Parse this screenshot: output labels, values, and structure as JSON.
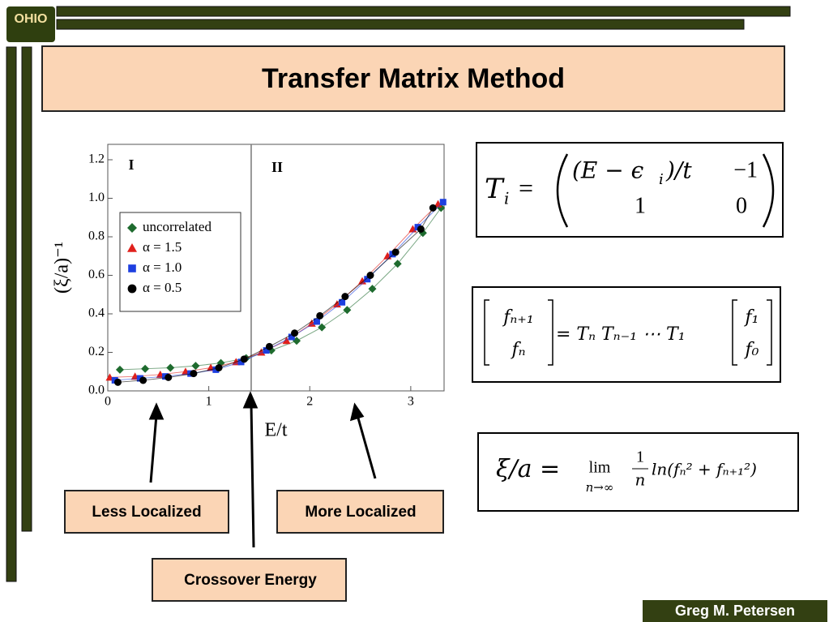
{
  "slide": {
    "logo": "OHIO",
    "title": "Transfer Matrix Method",
    "eq1": {
      "lhs": "T",
      "lhs_sub": "i",
      "eq": "=",
      "m11": "(E − ϵ",
      "m11_sub": "i",
      "m11_end": ")/t",
      "m12": "−1",
      "m21": "1",
      "m22": "0"
    },
    "eq2": {
      "v1": "fₙ₊₁",
      "v2": "fₙ",
      "mid": "= Tₙ Tₙ₋₁ ⋯ T₁",
      "w1": "f₁",
      "w2": "f₀"
    },
    "eq3": {
      "lhs": "ξ/a =",
      "lim": "lim",
      "lim_sub": "n→∞",
      "num": "1",
      "den": "n",
      "rhs": "ln(fₙ² + fₙ₊₁²)"
    },
    "callouts": [
      "Less Localized",
      "More Localized",
      "Crossover Energy"
    ],
    "author": "Greg M. Petersen"
  },
  "chart_data": {
    "type": "scatter",
    "xlabel": "E/t",
    "ylabel": "(ξ/a)⁻¹",
    "region_labels": [
      "I",
      "II"
    ],
    "divider_x": 1.42,
    "xlim": [
      0,
      3.33
    ],
    "ylim": [
      0,
      1.28
    ],
    "xticks": [
      0,
      1,
      2,
      3
    ],
    "yticks": [
      {
        "value": 0,
        "label": "0.0"
      },
      0.2,
      0.4,
      0.6,
      0.8,
      {
        "value": 1,
        "label": "1.0"
      },
      1.2
    ],
    "series": [
      {
        "name": "uncorrelated",
        "color": "#1e6b2e",
        "marker": "diamond",
        "x": [
          0.12,
          0.37,
          0.62,
          0.87,
          1.12,
          1.37,
          1.62,
          1.87,
          2.12,
          2.37,
          2.62,
          2.87,
          3.12,
          3.3
        ],
        "values": [
          0.11,
          0.115,
          0.12,
          0.13,
          0.145,
          0.17,
          0.21,
          0.26,
          0.33,
          0.42,
          0.53,
          0.66,
          0.82,
          0.95
        ]
      },
      {
        "name": "α = 1.5",
        "color": "#e0201c",
        "marker": "triangle",
        "x": [
          0.02,
          0.27,
          0.52,
          0.77,
          1.02,
          1.27,
          1.52,
          1.77,
          2.02,
          2.27,
          2.52,
          2.77,
          3.02,
          3.27
        ],
        "values": [
          0.07,
          0.075,
          0.085,
          0.1,
          0.12,
          0.15,
          0.2,
          0.26,
          0.35,
          0.45,
          0.57,
          0.7,
          0.84,
          0.97
        ]
      },
      {
        "name": "α = 1.0",
        "color": "#1d3fe0",
        "marker": "square",
        "x": [
          0.07,
          0.32,
          0.57,
          0.82,
          1.07,
          1.32,
          1.57,
          1.82,
          2.07,
          2.32,
          2.57,
          2.82,
          3.07,
          3.32
        ],
        "values": [
          0.055,
          0.065,
          0.075,
          0.09,
          0.11,
          0.15,
          0.21,
          0.28,
          0.36,
          0.46,
          0.58,
          0.71,
          0.85,
          0.98
        ]
      },
      {
        "name": "α = 0.5",
        "color": "#000000",
        "marker": "circle",
        "x": [
          0.1,
          0.35,
          0.6,
          0.85,
          1.1,
          1.35,
          1.6,
          1.85,
          2.1,
          2.35,
          2.6,
          2.85,
          3.1,
          3.22
        ],
        "values": [
          0.045,
          0.055,
          0.07,
          0.09,
          0.12,
          0.165,
          0.23,
          0.3,
          0.39,
          0.49,
          0.6,
          0.72,
          0.84,
          0.95
        ]
      }
    ]
  }
}
